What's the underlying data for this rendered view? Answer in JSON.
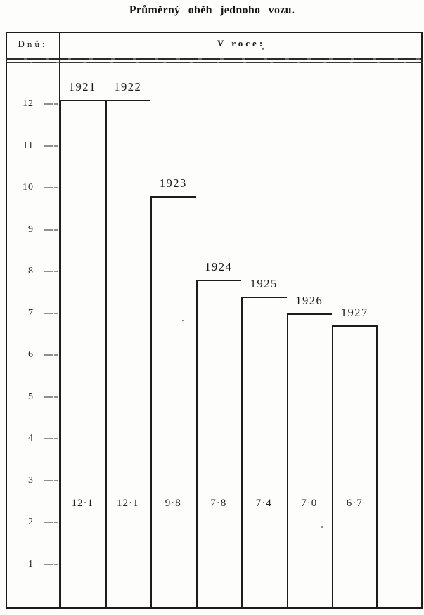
{
  "title": "Průměrný oběh jednoho vozu.",
  "header": {
    "y_unit_label": "Dnů:",
    "x_header_label": "V roce:"
  },
  "colors": {
    "ink": "#1c1c1c",
    "paper": "#fdfdfb"
  },
  "chart_data": {
    "type": "bar",
    "title": "Průměrný oběh jednoho vozu.",
    "x_header": "V roce:",
    "y_header": "Dnů:",
    "categories": [
      "1921",
      "1922",
      "1923",
      "1924",
      "1925",
      "1926",
      "1927"
    ],
    "values": [
      12.1,
      12.1,
      9.8,
      7.8,
      7.4,
      7.0,
      6.7
    ],
    "value_labels": [
      "12·1",
      "12·1",
      "9·8",
      "7·8",
      "7·4",
      "7·0",
      "6·7"
    ],
    "y_ticks": [
      12,
      11,
      10,
      9,
      8,
      7,
      6,
      5,
      4,
      3,
      2,
      1
    ],
    "ylim": [
      0,
      13.7
    ],
    "grid": false,
    "legend": "none",
    "bar_style": "outlined-white",
    "value_label_position": "inside-bar-near-bottom",
    "category_label_position": "above-bar"
  }
}
